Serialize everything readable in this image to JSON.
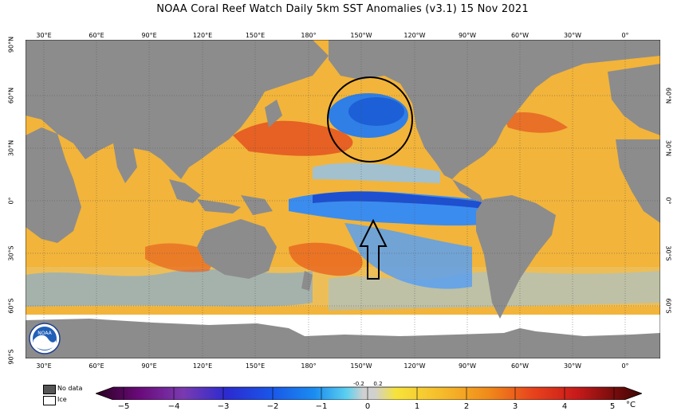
{
  "title": "NOAA Coral Reef Watch Daily 5km SST Anomalies  (v3.1)   15 Nov 2021",
  "lon_labels": [
    "30°E",
    "60°E",
    "90°E",
    "120°E",
    "150°E",
    "180°",
    "150°W",
    "120°W",
    "90°W",
    "60°W",
    "30°W",
    "0°"
  ],
  "lat_labels_left": [
    "90°N",
    "60°N",
    "30°N",
    "0°",
    "30°S",
    "60°S",
    "90°S"
  ],
  "lat_labels_right": [
    "60°N",
    "30°N",
    "0°",
    "30°S",
    "60°S"
  ],
  "legend": {
    "no_data": {
      "label": "No data",
      "color": "#555555"
    },
    "ice": {
      "label": "Ice",
      "color": "#ffffff"
    }
  },
  "colorbar": {
    "unit": "°C",
    "ticks": [
      "−5",
      "−4",
      "−3",
      "−2",
      "−1",
      "0",
      "1",
      "2",
      "3",
      "4",
      "5"
    ],
    "minor_labels": [
      "-0.2",
      "0.2"
    ]
  },
  "annotations": {
    "circle": "cold anomaly region in North Pacific",
    "arrow": "pointing up toward equatorial Pacific"
  },
  "logo": {
    "text": "NOAA"
  },
  "colors": {
    "land": "#8c8c8c",
    "ice": "#ffffff",
    "warm": "#f5a623",
    "hot": "#e8431c",
    "cold": "#1e6fe0",
    "neutral": "#d9d9d9"
  }
}
